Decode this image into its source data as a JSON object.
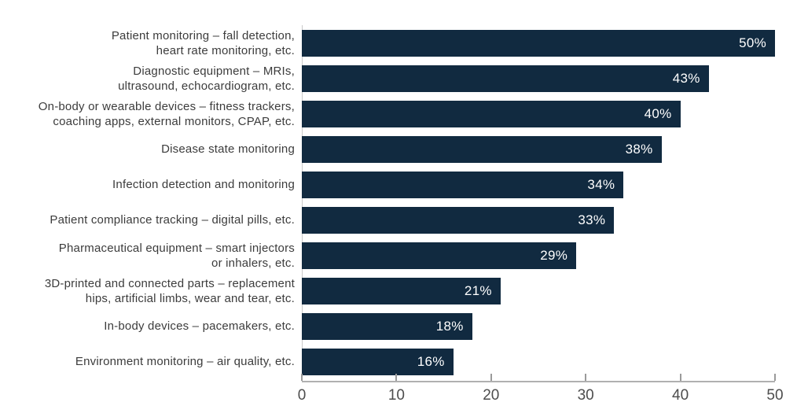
{
  "chart_data": {
    "type": "bar",
    "orientation": "horizontal",
    "title": "",
    "xlabel": "",
    "ylabel": "",
    "xlim": [
      0,
      50
    ],
    "grid": false,
    "legend": "none",
    "categories": [
      "Patient monitoring – fall detection,\nheart rate monitoring, etc.",
      "Diagnostic equipment – MRIs,\nultrasound, echocardiogram, etc.",
      "On-body or wearable devices – fitness trackers,\ncoaching apps, external monitors, CPAP, etc.",
      "Disease state monitoring",
      "Infection detection and monitoring",
      "Patient compliance tracking – digital pills, etc.",
      "Pharmaceutical equipment – smart injectors\nor inhalers, etc.",
      "3D-printed and connected parts – replacement\nhips, artificial limbs, wear and tear, etc.",
      "In-body devices – pacemakers, etc.",
      "Environment monitoring – air quality, etc."
    ],
    "values": [
      50,
      43,
      40,
      38,
      34,
      33,
      29,
      21,
      18,
      16
    ],
    "value_labels": [
      "50%",
      "43%",
      "40%",
      "38%",
      "34%",
      "33%",
      "29%",
      "21%",
      "18%",
      "16%"
    ],
    "xticks": [
      "0",
      "10",
      "20",
      "30",
      "40",
      "50"
    ],
    "xtick_values": [
      0,
      10,
      20,
      30,
      40,
      50
    ],
    "colors": {
      "bar": "#112a40",
      "value_text": "#ffffff",
      "category_text": "#3c3c3c",
      "axis_line": "#b0b0b0",
      "tick": "#9a9a9a",
      "tick_text": "#4d4d4d",
      "background": "#ffffff"
    }
  }
}
